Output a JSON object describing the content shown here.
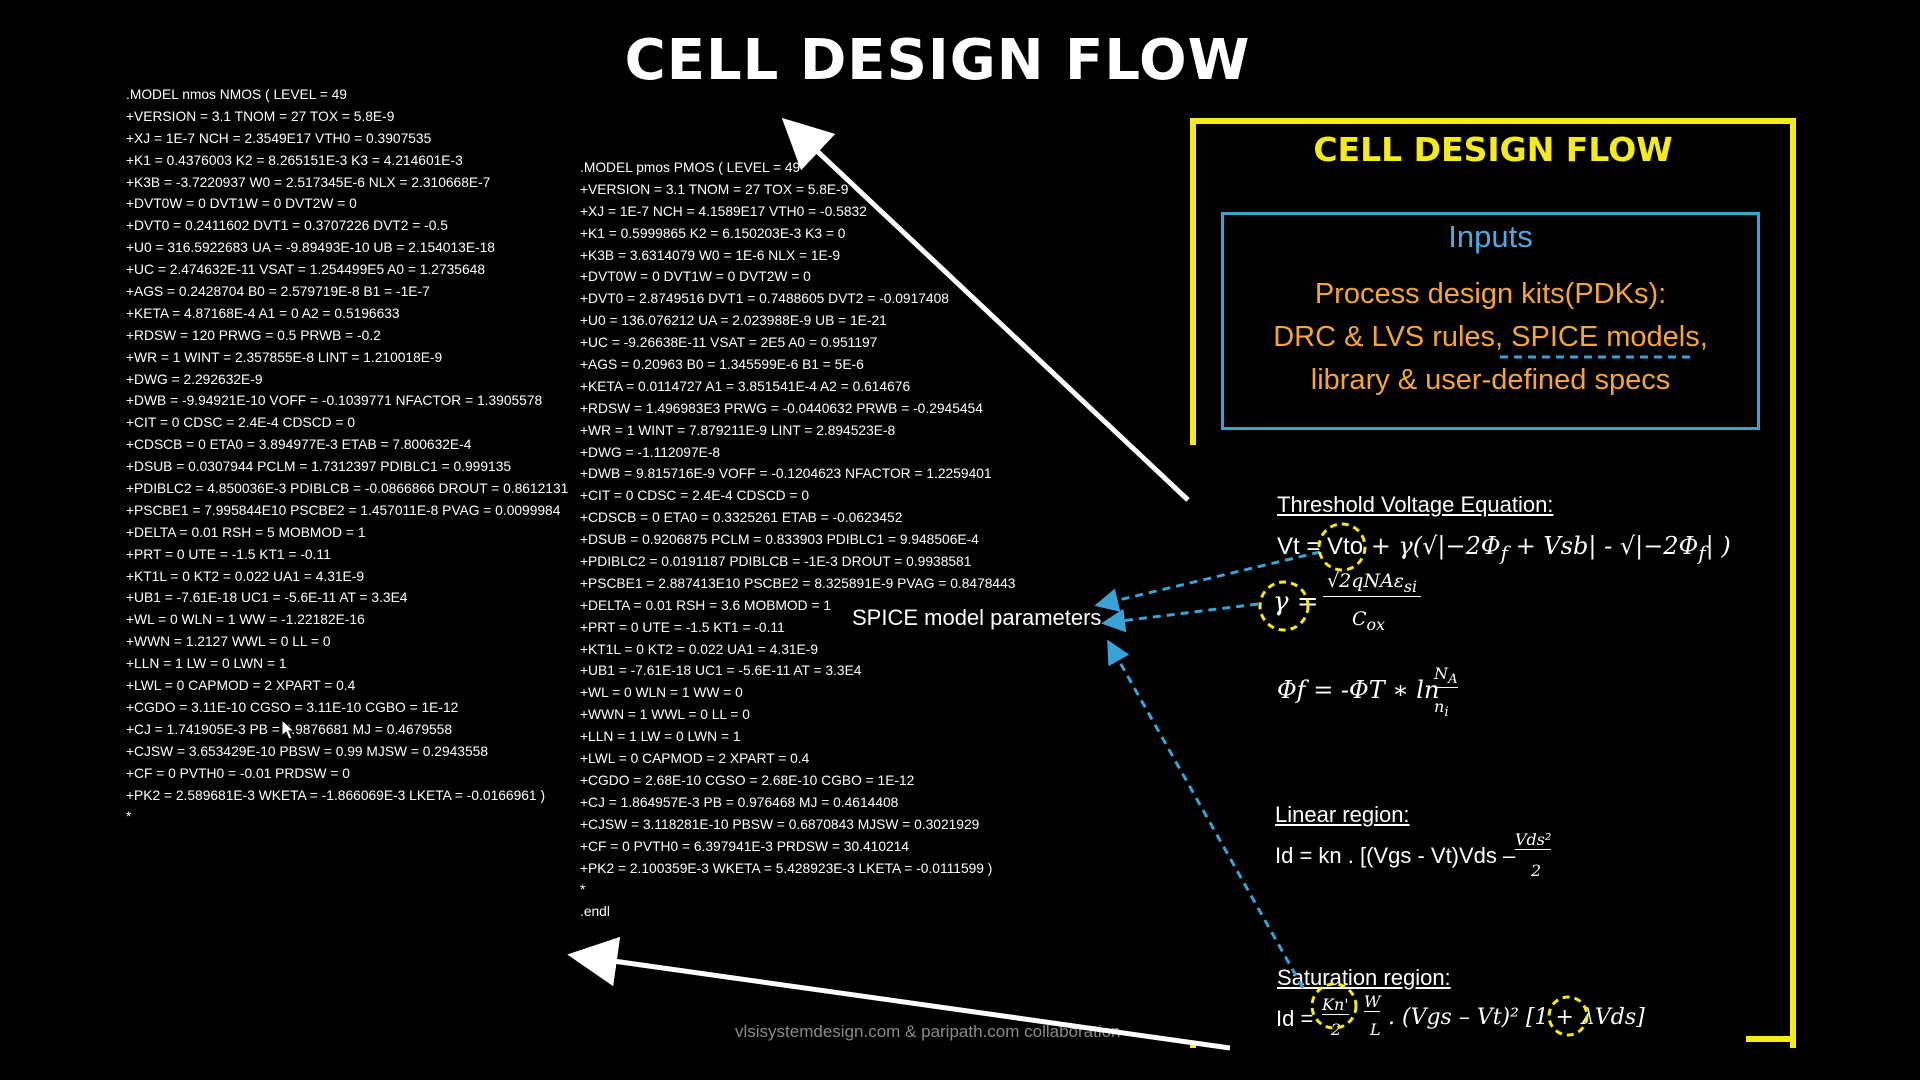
{
  "title": "CELL DESIGN FLOW",
  "nmos_lines": [
    ".MODEL nmos NMOS ( LEVEL = 49",
    "+VERSION = 3.1 TNOM = 27 TOX = 5.8E-9",
    "+XJ = 1E-7 NCH = 2.3549E17 VTH0 = 0.3907535",
    "+K1 = 0.4376003 K2 = 8.265151E-3 K3 = 4.214601E-3",
    "+K3B = -3.7220937 W0 = 2.517345E-6 NLX = 2.310668E-7",
    "+DVT0W = 0 DVT1W = 0 DVT2W = 0",
    "+DVT0 = 0.2411602 DVT1 = 0.3707226 DVT2 = -0.5",
    "+U0 = 316.5922683 UA = -9.89493E-10 UB = 2.154013E-18",
    "+UC = 2.474632E-11 VSAT = 1.254499E5 A0 = 1.2735648",
    "+AGS = 0.2428704 B0 = 2.579719E-8 B1 = -1E-7",
    "+KETA = 4.87168E-4 A1 = 0 A2 = 0.5196633",
    "+RDSW = 120 PRWG = 0.5 PRWB = -0.2",
    "+WR = 1 WINT = 2.357855E-8 LINT = 1.210018E-9",
    "+DWG = 2.292632E-9",
    "+DWB = -9.94921E-10 VOFF = -0.1039771 NFACTOR = 1.3905578",
    "+CIT = 0 CDSC = 2.4E-4 CDSCD = 0",
    "+CDSCB = 0 ETA0 = 3.894977E-3 ETAB = 7.800632E-4",
    "+DSUB = 0.0307944 PCLM = 1.7312397 PDIBLC1 = 0.999135",
    "+PDIBLC2 = 4.850036E-3 PDIBLCB = -0.0866866 DROUT = 0.8612131",
    "+PSCBE1 = 7.995844E10 PSCBE2 = 1.457011E-8 PVAG = 0.0099984",
    "+DELTA = 0.01 RSH = 5 MOBMOD = 1",
    "+PRT = 0 UTE = -1.5 KT1 = -0.11",
    "+KT1L = 0 KT2 = 0.022 UA1 = 4.31E-9",
    "+UB1 = -7.61E-18 UC1 = -5.6E-11 AT = 3.3E4",
    "+WL = 0 WLN = 1 WW = -1.22182E-16",
    "+WWN = 1.2127 WWL = 0 LL = 0",
    "+LLN = 1 LW = 0 LWN = 1",
    "+LWL = 0 CAPMOD = 2 XPART = 0.4",
    "+CGDO = 3.11E-10 CGSO = 3.11E-10 CGBO = 1E-12",
    "+CJ = 1.741905E-3 PB = 0.9876681 MJ = 0.4679558",
    "+CJSW = 3.653429E-10 PBSW = 0.99 MJSW = 0.2943558",
    "+CF = 0 PVTH0 = -0.01 PRDSW = 0",
    "+PK2 = 2.589681E-3 WKETA = -1.866069E-3 LKETA = -0.0166961 )",
    "*"
  ],
  "pmos_lines": [
    ".MODEL pmos PMOS ( LEVEL = 49",
    "+VERSION = 3.1 TNOM = 27 TOX = 5.8E-9",
    "+XJ = 1E-7 NCH = 4.1589E17 VTH0 = -0.5832",
    "+K1 = 0.5999865 K2 = 6.150203E-3 K3 = 0",
    "+K3B = 3.6314079 W0 = 1E-6 NLX = 1E-9",
    "+DVT0W = 0 DVT1W = 0 DVT2W = 0",
    "+DVT0 = 2.8749516 DVT1 = 0.7488605 DVT2 = -0.0917408",
    "+U0 = 136.076212 UA = 2.023988E-9 UB = 1E-21",
    "+UC = -9.26638E-11 VSAT = 2E5 A0 = 0.951197",
    "+AGS = 0.20963 B0 = 1.345599E-6 B1 = 5E-6",
    "+KETA = 0.0114727 A1 = 3.851541E-4 A2 = 0.614676",
    "+RDSW = 1.496983E3 PRWG = -0.0440632 PRWB = -0.2945454",
    "+WR = 1 WINT = 7.879211E-9 LINT = 2.894523E-8",
    "+DWG = -1.112097E-8",
    "+DWB = 9.815716E-9 VOFF = -0.1204623 NFACTOR = 1.2259401",
    "+CIT = 0 CDSC = 2.4E-4 CDSCD = 0",
    "+CDSCB = 0 ETA0 = 0.3325261 ETAB = -0.0623452",
    "+DSUB = 0.9206875 PCLM = 0.833903 PDIBLC1 = 9.948506E-4",
    "+PDIBLC2 = 0.0191187 PDIBLCB = -1E-3 DROUT = 0.9938581",
    "+PSCBE1 = 2.887413E10 PSCBE2 = 8.325891E-9 PVAG = 0.8478443",
    "+DELTA = 0.01 RSH = 3.6 MOBMOD = 1",
    "+PRT = 0 UTE = -1.5 KT1 = -0.11",
    "+KT1L = 0 KT2 = 0.022 UA1 = 4.31E-9",
    "+UB1 = -7.61E-18 UC1 = -5.6E-11 AT = 3.3E4",
    "+WL = 0 WLN = 1 WW = 0",
    "+WWN = 1 WWL = 0 LL = 0",
    "+LLN = 1 LW = 0 LWN = 1",
    "+LWL = 0 CAPMOD = 2 XPART = 0.4",
    "+CGDO = 2.68E-10 CGSO = 2.68E-10 CGBO = 1E-12",
    "+CJ = 1.864957E-3 PB = 0.976468 MJ = 0.4614408",
    "+CJSW = 3.118281E-10 PBSW = 0.6870843 MJSW = 0.3021929",
    "+CF = 0 PVTH0 = 6.397941E-3 PRDSW = 30.410214",
    "+PK2 = 2.100359E-3 WKETA = 5.428923E-3 LKETA = -0.0111599 )",
    "*",
    ".endl"
  ],
  "panel": {
    "title": "CELL DESIGN FLOW",
    "inputs_title": "Inputs",
    "inputs_line1": "Process design kits(PDKs):",
    "inputs_line2": "DRC & LVS rules, SPICE models,",
    "inputs_line3": "library & user-defined specs",
    "threshold_heading": "Threshold Voltage Equation:",
    "vt_label": "Vt = ",
    "vto": "Vto",
    "gamma_sym": "γ",
    "phi_f_eq": "Φf = -ΦT ∗ ln",
    "linear_heading": "Linear region:",
    "linear_eq": "Id = kn . [(Vgs - Vt)Vds –",
    "saturation_heading": "Saturation region:",
    "saturation_eq_prefix": "Id =",
    "saturation_eq_rest": ". (Vgs – Vt)² [1 + λVds]",
    "kn_prime": "Kn'"
  },
  "spice_label": "SPICE model parameters",
  "footer": "vlsisystemdesign.com & paripath.com collaboration",
  "colors": {
    "accent_yellow": "#f5ea1a",
    "blue": "#3aa2d6",
    "orange": "#f3a53a"
  }
}
